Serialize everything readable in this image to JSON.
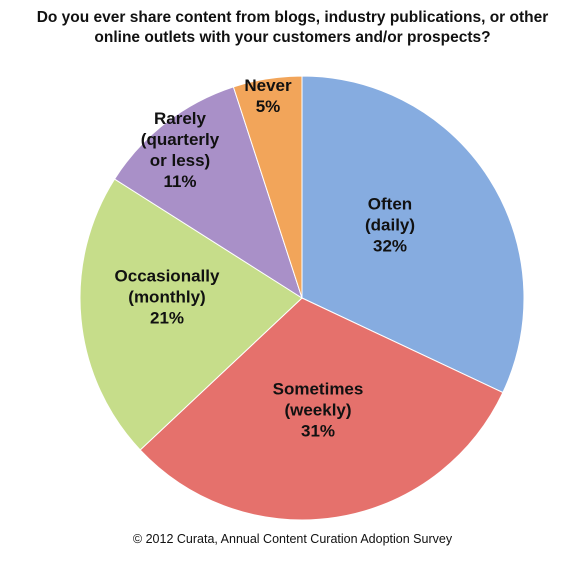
{
  "chart_data": {
    "type": "pie",
    "title": "Do you ever share content from blogs, industry publications, or other online outlets with your customers and/or prospects?",
    "categories": [
      "Often (daily)",
      "Sometimes (weekly)",
      "Occasionally (monthly)",
      "Rarely (quarterly or less)",
      "Never"
    ],
    "values": [
      32,
      31,
      21,
      11,
      5
    ],
    "value_labels": [
      "32%",
      "31%",
      "21%",
      "11%",
      "5%"
    ],
    "colors": [
      "#86ace0",
      "#e5716c",
      "#c6dd8a",
      "#a990c8",
      "#f2a55a"
    ],
    "source": "© 2012 Curata, Annual Content Curation Adoption Survey"
  }
}
